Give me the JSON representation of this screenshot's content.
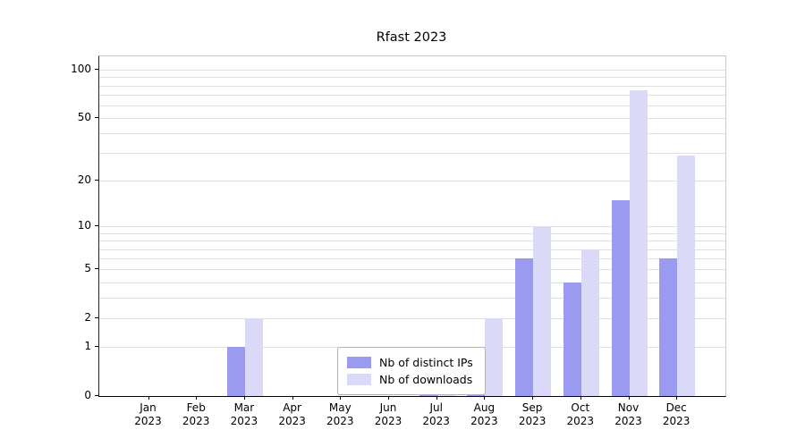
{
  "chart_data": {
    "type": "bar",
    "title": "Rfast 2023",
    "year": "2023",
    "categories": [
      "Jan",
      "Feb",
      "Mar",
      "Apr",
      "May",
      "Jun",
      "Jul",
      "Aug",
      "Sep",
      "Oct",
      "Nov",
      "Dec"
    ],
    "series": [
      {
        "name": "Nb of distinct IPs",
        "color": "#9a9af0",
        "values": [
          0,
          0,
          1,
          0,
          0,
          0,
          1,
          1,
          6,
          4,
          15,
          6
        ]
      },
      {
        "name": "Nb of downloads",
        "color": "#dadaf8",
        "values": [
          0,
          0,
          2,
          0,
          0,
          0,
          1,
          2,
          10,
          7,
          75,
          29
        ]
      }
    ],
    "yscale": "log1p",
    "yticks": [
      0,
      1,
      2,
      5,
      10,
      20,
      50,
      100
    ],
    "gridlines": [
      1,
      2,
      3,
      4,
      5,
      6,
      7,
      8,
      9,
      10,
      20,
      30,
      40,
      50,
      60,
      70,
      80,
      90,
      100
    ],
    "ylim": [
      0,
      120
    ],
    "grid": true,
    "legend_position": "lower center"
  }
}
